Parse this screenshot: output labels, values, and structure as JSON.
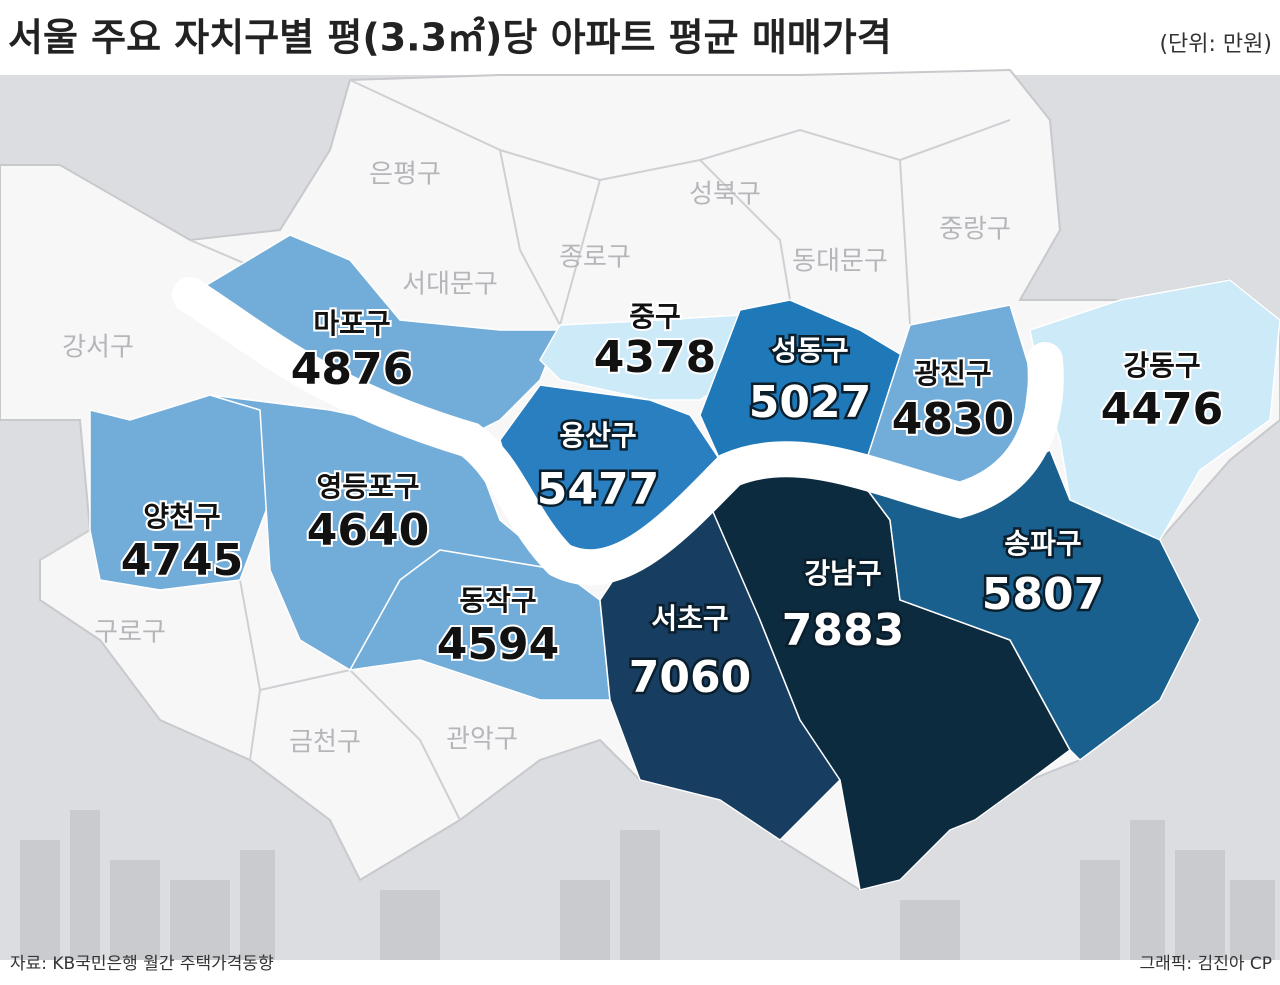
{
  "title": "서울 주요 자치구별 평(3.3㎡)당 아파트 평균 매매가격",
  "unit": "(단위: 만원)",
  "districts": [
    {
      "name": "마포구",
      "value": 4876,
      "color": "#72acd8"
    },
    {
      "name": "중구",
      "value": 4378,
      "color": "#cdeaf8"
    },
    {
      "name": "용산구",
      "value": 5477,
      "color": "#2a7fc1"
    },
    {
      "name": "성동구",
      "value": 5027,
      "color": "#1f78b8"
    },
    {
      "name": "광진구",
      "value": 4830,
      "color": "#72acd8"
    },
    {
      "name": "강동구",
      "value": 4476,
      "color": "#cdeaf8"
    },
    {
      "name": "양천구",
      "value": 4745,
      "color": "#72acd8"
    },
    {
      "name": "영등포구",
      "value": 4640,
      "color": "#72acd8"
    },
    {
      "name": "동작구",
      "value": 4594,
      "color": "#72acd8"
    },
    {
      "name": "서초구",
      "value": 7060,
      "color": "#173d60"
    },
    {
      "name": "강남구",
      "value": 7883,
      "color": "#0d2b3f"
    },
    {
      "name": "송파구",
      "value": 5807,
      "color": "#19608f"
    }
  ],
  "other_districts": [
    "은평구",
    "서대문구",
    "종로구",
    "성북구",
    "동대문구",
    "중랑구",
    "강서구",
    "구로구",
    "금천구",
    "관악구"
  ],
  "source": "자료: KB국민은행 월간 주택가격동향",
  "credit": "그래픽: 김진아 CP"
}
